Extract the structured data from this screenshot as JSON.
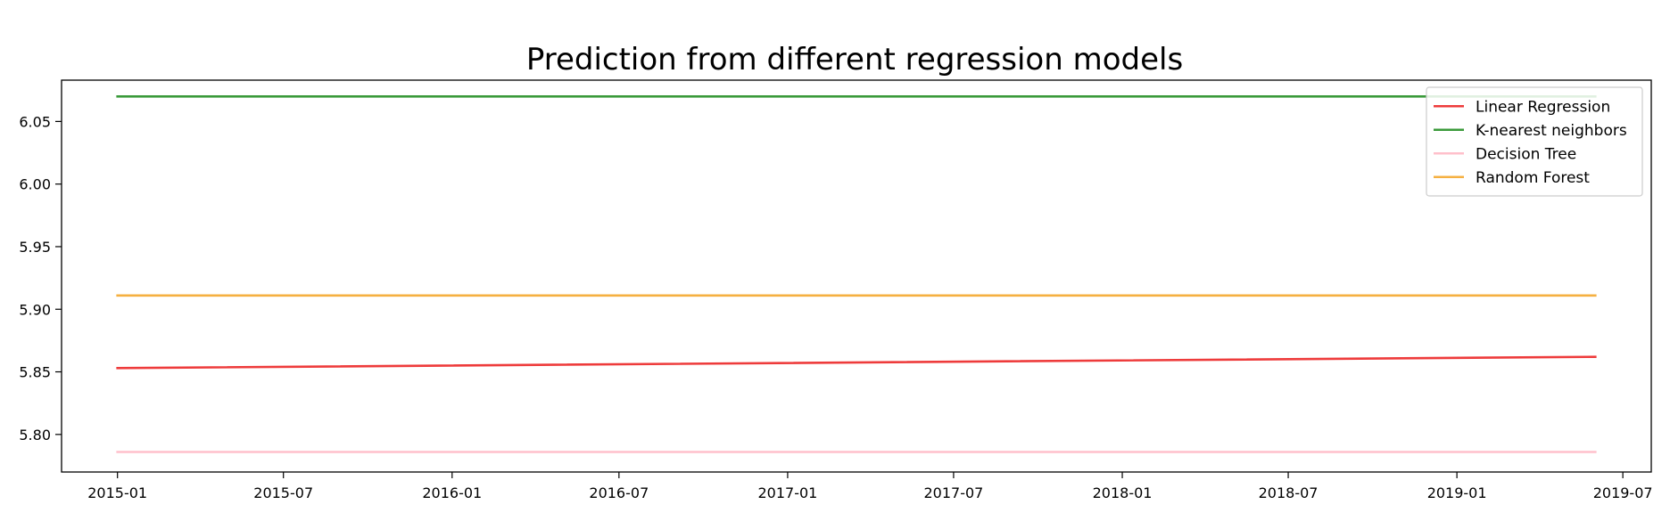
{
  "chart_data": {
    "type": "line",
    "title": "Prediction from different regression models",
    "xlabel": "",
    "ylabel": "",
    "x_axis": {
      "type": "date",
      "range": [
        "2014-11-01",
        "2019-08-01"
      ],
      "ticks": [
        "2015-01",
        "2015-07",
        "2016-01",
        "2016-07",
        "2017-01",
        "2017-07",
        "2018-01",
        "2018-07",
        "2019-01",
        "2019-07"
      ]
    },
    "y_axis": {
      "range": [
        5.77,
        6.083
      ],
      "ticks": [
        "5.80",
        "5.85",
        "5.90",
        "5.95",
        "6.00",
        "6.05"
      ]
    },
    "grid": false,
    "legend_position": "top-right",
    "series": [
      {
        "name": "Linear Regression",
        "color": "#ee3b3b",
        "x": [
          "2015-01-01",
          "2019-06-01"
        ],
        "y": [
          5.853,
          5.862
        ]
      },
      {
        "name": "K-nearest neighbors",
        "color": "#3a9a3a",
        "x": [
          "2015-01-01",
          "2019-06-01"
        ],
        "y": [
          6.07,
          6.07
        ]
      },
      {
        "name": "Decision Tree",
        "color": "#ffc0cb",
        "x": [
          "2015-01-01",
          "2019-06-01"
        ],
        "y": [
          5.786,
          5.786
        ]
      },
      {
        "name": "Random Forest",
        "color": "#f5b041",
        "x": [
          "2015-01-01",
          "2019-06-01"
        ],
        "y": [
          5.911,
          5.911
        ]
      }
    ]
  }
}
